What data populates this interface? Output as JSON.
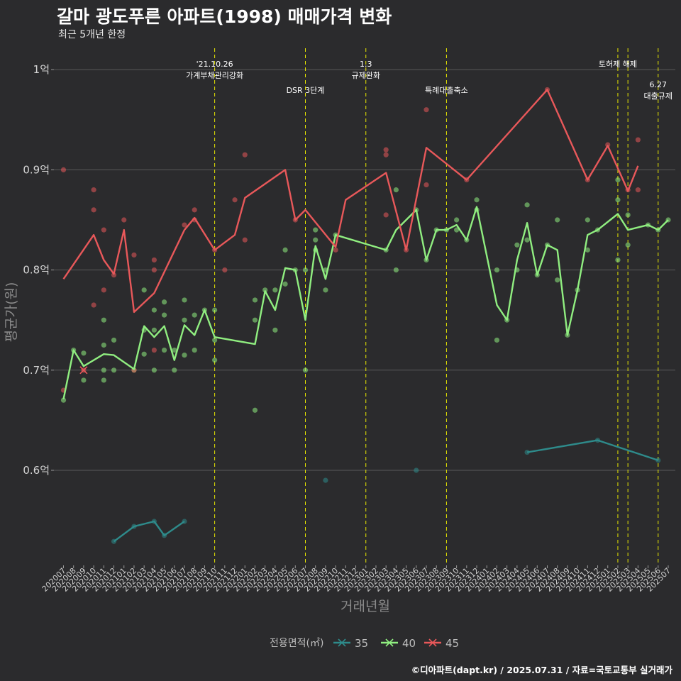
{
  "header": {
    "title": "갈마 광도푸른 아파트(1998) 매매가격 변화",
    "subtitle": "최근 5개년 한정"
  },
  "caption": "©디아파트(dapt.kr) / 2025.07.31 / 자료=국토교통부 실거래가",
  "colors": {
    "background": "#2b2b2d",
    "grid": "#5a5a5a",
    "vline": "#e8e800",
    "s35": "#2e8b8b",
    "s40": "#90ee80",
    "s45": "#e8585a"
  },
  "chart_data": {
    "type": "line",
    "xlabel": "거래년월",
    "ylabel": "평균가(원)",
    "x_categories": [
      "202007",
      "202008",
      "202009",
      "202010",
      "202011",
      "202012",
      "202101",
      "202102",
      "202103",
      "202104",
      "202105",
      "202106",
      "202107",
      "202108",
      "202109",
      "202110",
      "202111",
      "202112",
      "202201",
      "202202",
      "202203",
      "202204",
      "202205",
      "202206",
      "202207",
      "202208",
      "202209",
      "202210",
      "202211",
      "202212",
      "202301",
      "202302",
      "202303",
      "202304",
      "202305",
      "202306",
      "202307",
      "202308",
      "202309",
      "202310",
      "202311",
      "202312",
      "202401",
      "202402",
      "202403",
      "202404",
      "202405",
      "202406",
      "202407",
      "202408",
      "202409",
      "202410",
      "202411",
      "202412",
      "202501",
      "202502",
      "202503",
      "202504",
      "202505",
      "202506",
      "202507"
    ],
    "y_ticks": [
      {
        "value": 0.6,
        "label": "0.6억"
      },
      {
        "value": 0.7,
        "label": "0.7억"
      },
      {
        "value": 0.8,
        "label": "0.8억"
      },
      {
        "value": 0.9,
        "label": "0.9억"
      },
      {
        "value": 1.0,
        "label": "1억"
      }
    ],
    "ylim": [
      0.506,
      1.02
    ],
    "legend": {
      "title": "전용면적(㎡)",
      "position": "bottom"
    },
    "series": [
      {
        "name": "35",
        "color_key": "s35",
        "line": [
          [
            "202012",
            0.529
          ],
          [
            "202102",
            0.544
          ],
          [
            "202104",
            0.549
          ],
          [
            "202105",
            0.535
          ],
          [
            "202107",
            0.549
          ],
          null,
          [
            "202405",
            0.618
          ],
          [
            "202412",
            0.63
          ],
          [
            "202506",
            0.61
          ]
        ],
        "points": [
          [
            "202012",
            0.529
          ],
          [
            "202102",
            0.544
          ],
          [
            "202104",
            0.549
          ],
          [
            "202105",
            0.535
          ],
          [
            "202107",
            0.549
          ],
          [
            "202209",
            0.59
          ],
          [
            "202306",
            0.6
          ],
          [
            "202405",
            0.618
          ],
          [
            "202412",
            0.63
          ],
          [
            "202506",
            0.61
          ]
        ]
      },
      {
        "name": "40",
        "color_key": "s40",
        "line": [
          [
            "202007",
            0.671
          ],
          [
            "202008",
            0.72
          ],
          [
            "202009",
            0.704
          ],
          [
            "202011",
            0.716
          ],
          [
            "202012",
            0.715
          ],
          [
            "202102",
            0.701
          ],
          [
            "202103",
            0.744
          ],
          [
            "202104",
            0.733
          ],
          [
            "202105",
            0.744
          ],
          [
            "202106",
            0.71
          ],
          [
            "202107",
            0.745
          ],
          [
            "202108",
            0.735
          ],
          [
            "202109",
            0.76
          ],
          [
            "202110",
            0.733
          ],
          [
            "202202",
            0.726
          ],
          [
            "202203",
            0.779
          ],
          [
            "202204",
            0.76
          ],
          [
            "202205",
            0.802
          ],
          [
            "202206",
            0.8
          ],
          [
            "202207",
            0.75
          ],
          [
            "202208",
            0.824
          ],
          [
            "202209",
            0.791
          ],
          [
            "202210",
            0.835
          ],
          [
            "202303",
            0.82
          ],
          [
            "202304",
            0.84
          ],
          [
            "202306",
            0.86
          ],
          [
            "202307",
            0.81
          ],
          [
            "202308",
            0.84
          ],
          [
            "202309",
            0.84
          ],
          [
            "202310",
            0.845
          ],
          [
            "202311",
            0.83
          ],
          [
            "202312",
            0.863
          ],
          [
            "202402",
            0.765
          ],
          [
            "202403",
            0.75
          ],
          [
            "202404",
            0.81
          ],
          [
            "202405",
            0.847
          ],
          [
            "202406",
            0.795
          ],
          [
            "202407",
            0.825
          ],
          [
            "202408",
            0.82
          ],
          [
            "202409",
            0.735
          ],
          [
            "202410",
            0.78
          ],
          [
            "202411",
            0.835
          ],
          [
            "202412",
            0.84
          ],
          [
            "202502",
            0.856
          ],
          [
            "202503",
            0.84
          ],
          [
            "202505",
            0.845
          ],
          [
            "202506",
            0.84
          ],
          [
            "202507",
            0.85
          ]
        ],
        "points": [
          [
            "202007",
            0.67
          ],
          [
            "202008",
            0.72
          ],
          [
            "202009",
            0.69
          ],
          [
            "202009",
            0.717
          ],
          [
            "202011",
            0.69
          ],
          [
            "202011",
            0.7
          ],
          [
            "202011",
            0.725
          ],
          [
            "202011",
            0.75
          ],
          [
            "202012",
            0.7
          ],
          [
            "202012",
            0.73
          ],
          [
            "202102",
            0.7
          ],
          [
            "202103",
            0.716
          ],
          [
            "202103",
            0.74
          ],
          [
            "202103",
            0.78
          ],
          [
            "202104",
            0.7
          ],
          [
            "202104",
            0.74
          ],
          [
            "202104",
            0.76
          ],
          [
            "202105",
            0.72
          ],
          [
            "202105",
            0.755
          ],
          [
            "202105",
            0.768
          ],
          [
            "202106",
            0.7
          ],
          [
            "202106",
            0.72
          ],
          [
            "202107",
            0.715
          ],
          [
            "202107",
            0.75
          ],
          [
            "202107",
            0.77
          ],
          [
            "202108",
            0.72
          ],
          [
            "202108",
            0.755
          ],
          [
            "202109",
            0.76
          ],
          [
            "202110",
            0.71
          ],
          [
            "202110",
            0.73
          ],
          [
            "202110",
            0.76
          ],
          [
            "202202",
            0.66
          ],
          [
            "202202",
            0.75
          ],
          [
            "202202",
            0.77
          ],
          [
            "202203",
            0.78
          ],
          [
            "202204",
            0.74
          ],
          [
            "202204",
            0.78
          ],
          [
            "202205",
            0.786
          ],
          [
            "202205",
            0.82
          ],
          [
            "202206",
            0.8
          ],
          [
            "202207",
            0.7
          ],
          [
            "202207",
            0.8
          ],
          [
            "202208",
            0.82
          ],
          [
            "202208",
            0.83
          ],
          [
            "202208",
            0.84
          ],
          [
            "202209",
            0.78
          ],
          [
            "202209",
            0.8
          ],
          [
            "202210",
            0.835
          ],
          [
            "202303",
            0.82
          ],
          [
            "202304",
            0.8
          ],
          [
            "202304",
            0.88
          ],
          [
            "202306",
            0.86
          ],
          [
            "202307",
            0.81
          ],
          [
            "202308",
            0.84
          ],
          [
            "202309",
            0.84
          ],
          [
            "202310",
            0.84
          ],
          [
            "202310",
            0.85
          ],
          [
            "202311",
            0.83
          ],
          [
            "202312",
            0.87
          ],
          [
            "202312",
            0.86
          ],
          [
            "202402",
            0.73
          ],
          [
            "202402",
            0.8
          ],
          [
            "202403",
            0.75
          ],
          [
            "202404",
            0.8
          ],
          [
            "202404",
            0.825
          ],
          [
            "202405",
            0.83
          ],
          [
            "202405",
            0.865
          ],
          [
            "202406",
            0.795
          ],
          [
            "202407",
            0.825
          ],
          [
            "202408",
            0.79
          ],
          [
            "202408",
            0.85
          ],
          [
            "202409",
            0.735
          ],
          [
            "202410",
            0.78
          ],
          [
            "202411",
            0.82
          ],
          [
            "202411",
            0.85
          ],
          [
            "202412",
            0.84
          ],
          [
            "202502",
            0.81
          ],
          [
            "202502",
            0.87
          ],
          [
            "202502",
            0.89
          ],
          [
            "202503",
            0.825
          ],
          [
            "202503",
            0.855
          ],
          [
            "202505",
            0.845
          ],
          [
            "202506",
            0.84
          ],
          [
            "202507",
            0.85
          ]
        ]
      },
      {
        "name": "45",
        "color_key": "s45",
        "line": [
          [
            "202007",
            0.791
          ],
          [
            "202010",
            0.835
          ],
          [
            "202011",
            0.81
          ],
          [
            "202012",
            0.796
          ],
          [
            "202101",
            0.84
          ],
          [
            "202102",
            0.758
          ],
          [
            "202104",
            0.777
          ],
          [
            "202107",
            0.84
          ],
          [
            "202108",
            0.852
          ],
          [
            "202110",
            0.82
          ],
          [
            "202112",
            0.835
          ],
          [
            "202201",
            0.872
          ],
          [
            "202205",
            0.9
          ],
          [
            "202206",
            0.85
          ],
          [
            "202207",
            0.86
          ],
          [
            "202210",
            0.823
          ],
          [
            "202211",
            0.87
          ],
          [
            "202303",
            0.897
          ],
          [
            "202305",
            0.82
          ],
          [
            "202307",
            0.922
          ],
          [
            "202311",
            0.89
          ],
          [
            "202407",
            0.98
          ],
          [
            "202411",
            0.89
          ],
          [
            "202501",
            0.924
          ],
          [
            "202503",
            0.879
          ],
          [
            "202504",
            0.904
          ]
        ],
        "points": [
          [
            "202007",
            0.68
          ],
          [
            "202007",
            0.9
          ],
          [
            "202009",
            0.7
          ],
          [
            "202010",
            0.765
          ],
          [
            "202010",
            0.86
          ],
          [
            "202010",
            0.88
          ],
          [
            "202011",
            0.78
          ],
          [
            "202011",
            0.84
          ],
          [
            "202012",
            0.795
          ],
          [
            "202101",
            0.85
          ],
          [
            "202102",
            0.7
          ],
          [
            "202102",
            0.815
          ],
          [
            "202104",
            0.72
          ],
          [
            "202104",
            0.8
          ],
          [
            "202104",
            0.81
          ],
          [
            "202107",
            0.845
          ],
          [
            "202108",
            0.85
          ],
          [
            "202108",
            0.86
          ],
          [
            "202110",
            0.82
          ],
          [
            "202111",
            0.8
          ],
          [
            "202112",
            0.87
          ],
          [
            "202201",
            0.83
          ],
          [
            "202201",
            0.915
          ],
          [
            "202206",
            0.85
          ],
          [
            "202210",
            0.82
          ],
          [
            "202303",
            0.855
          ],
          [
            "202303",
            0.915
          ],
          [
            "202303",
            0.92
          ],
          [
            "202305",
            0.82
          ],
          [
            "202307",
            0.885
          ],
          [
            "202307",
            0.96
          ],
          [
            "202311",
            0.89
          ],
          [
            "202407",
            0.98
          ],
          [
            "202411",
            0.89
          ],
          [
            "202501",
            0.925
          ],
          [
            "202503",
            0.88
          ],
          [
            "202504",
            0.88
          ],
          [
            "202504",
            0.93
          ]
        ]
      }
    ],
    "markers": [
      {
        "series": "45",
        "symbol": "x",
        "x": "202009",
        "y": 0.7
      }
    ],
    "annotations": [
      {
        "x": "202110",
        "lines": [
          "'21.10.26",
          "가계부채관리강화"
        ],
        "level": 1
      },
      {
        "x": "202207",
        "lines": [
          "DSR 3단계"
        ],
        "level": 2
      },
      {
        "x": "202301",
        "lines": [
          "1.3",
          "규제완화"
        ],
        "level": 1
      },
      {
        "x": "202309",
        "lines": [
          "특례대출축소"
        ],
        "level": 2
      },
      {
        "x": "202502",
        "lines": [
          "토허제 해제"
        ],
        "level": 1
      },
      {
        "x": "202503",
        "lines": [],
        "level": 1
      },
      {
        "x": "202506",
        "lines": [
          "6.27",
          "대출규제"
        ],
        "level": 3
      }
    ]
  }
}
